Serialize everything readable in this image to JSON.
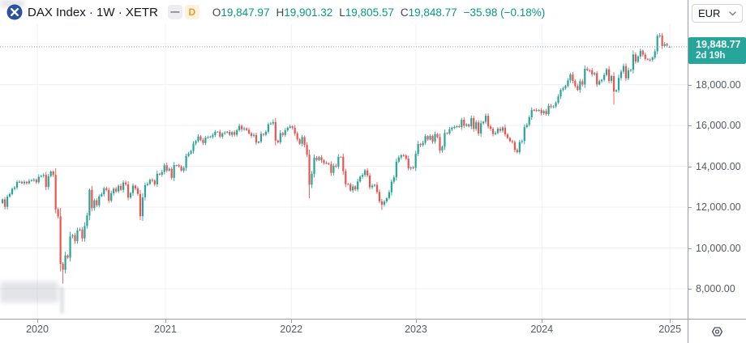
{
  "header": {
    "symbol_title": "DAX Index · 1W · XETR",
    "toolbar": {
      "collapse_icon": "—",
      "interval_badge": "D"
    },
    "ohlc": {
      "o_label": "O",
      "o": "19,847.97",
      "h_label": "H",
      "h": "19,901.32",
      "l_label": "L",
      "l": "19,805.57",
      "c_label": "C",
      "c": "19,848.77",
      "change": "−35.98 (−0.18%)"
    }
  },
  "currency_selector": {
    "value": "EUR"
  },
  "price_scale": {
    "last_price": "19,848.77",
    "countdown": "2d 19h",
    "labels": [
      {
        "price": 20000,
        "text": "20,000.00"
      },
      {
        "price": 18000,
        "text": "18,000.00"
      },
      {
        "price": 16000,
        "text": "16,000.00"
      },
      {
        "price": 14000,
        "text": "14,000.00"
      },
      {
        "price": 12000,
        "text": "12,000.00"
      },
      {
        "price": 10000,
        "text": "10,000.00"
      },
      {
        "price": 8000,
        "text": "8,000.00"
      }
    ]
  },
  "time_scale": {
    "years": [
      "2020",
      "2021",
      "2022",
      "2023",
      "2024",
      "2025"
    ]
  },
  "colors": {
    "up": "#26a69a",
    "down": "#ef5350",
    "value_text": "#089981",
    "grid": "#eef1f6",
    "axis_text": "#555a64",
    "price_box": "#26a69a",
    "current_price_line": "#9aa0a8",
    "logo_blue": "#2a52a2",
    "badge_orange": "#f09a26"
  },
  "chart_data": {
    "type": "candlestick",
    "symbol": "DAX Index",
    "interval": "1W",
    "exchange": "XETR",
    "currency": "EUR",
    "last_bar": {
      "open": 19847.97,
      "high": 19901.32,
      "low": 19805.57,
      "close": 19848.77,
      "change": -35.98,
      "change_pct": -0.18,
      "countdown": "2d 19h"
    },
    "y_axis": {
      "ticks": [
        8000,
        10000,
        12000,
        14000,
        16000,
        18000,
        20000
      ],
      "visible_range": [
        6600,
        20950
      ],
      "grid": true
    },
    "x_axis": {
      "years": [
        2020,
        2021,
        2022,
        2023,
        2024,
        2025
      ],
      "tick_weeks": [
        14.4,
        67.4,
        119.5,
        171.1,
        223.2,
        276.2
      ],
      "start": "2019-09",
      "end": "2025-01"
    },
    "first_open": 12200,
    "weekly_closes": [
      12380,
      12012,
      12512,
      12634,
      12895,
      12961,
      13229,
      13242,
      13164,
      13236,
      13167,
      13283,
      13319,
      13337,
      13219,
      13483,
      13526,
      13577,
      12982,
      13514,
      13744,
      13579,
      11890,
      11542,
      9232,
      8929,
      9633,
      9526,
      10565,
      10626,
      10336,
      10862,
      10904,
      10465,
      11074,
      11587,
      12847,
      11950,
      12331,
      12089,
      12528,
      12634,
      12920,
      12838,
      12313,
      12675,
      12901,
      12765,
      13033,
      12843,
      13203,
      13116,
      12469,
      12689,
      13052,
      12909,
      12646,
      11556,
      12480,
      13077,
      13137,
      13336,
      13299,
      13114,
      13631,
      13587,
      13719,
      14050,
      13788,
      13874,
      13433,
      14057,
      14050,
      13993,
      13786,
      13921,
      14502,
      14621,
      14749,
      15107,
      15234,
      15460,
      15280,
      15136,
      15400,
      15416,
      15438,
      15520,
      15693,
      15693,
      15448,
      15608,
      15650,
      15687,
      15540,
      15669,
      15544,
      15761,
      15977,
      15808,
      15852,
      15781,
      15610,
      15490,
      15532,
      15156,
      15206,
      15587,
      15543,
      15689,
      16054,
      16094,
      16160,
      15257,
      15170,
      15623,
      15532,
      15754,
      15885,
      15948,
      15883,
      15604,
      15319,
      15100,
      15425,
      15043,
      14567,
      13095,
      13628,
      14413,
      14306,
      14446,
      14284,
      14163,
      14142,
      14098,
      13674,
      14028,
      13982,
      14462,
      14460,
      13762,
      13126,
      13118,
      12813,
      13015,
      12864,
      13254,
      13484,
      13574,
      13796,
      13544,
      12971,
      13050,
      13088,
      12741,
      12284,
      12114,
      12273,
      12438,
      12731,
      13243,
      13460,
      14224,
      14432,
      14541,
      14529,
      14371,
      13894,
      13941,
      13924,
      14610,
      15087,
      15034,
      15150,
      15476,
      15308,
      15482,
      15210,
      15578,
      15428,
      14768,
      14957,
      15629,
      15598,
      15808,
      15882,
      15922,
      15961,
      15914,
      16275,
      15984,
      16051,
      15950,
      16358,
      15830,
      16148,
      15603,
      16105,
      16177,
      16470,
      15952,
      15832,
      15574,
      15632,
      15840,
      15740,
      15894,
      15557,
      15387,
      15230,
      15187,
      14798,
      14687,
      15189,
      15234,
      15919,
      16029,
      16398,
      16759,
      16751,
      16706,
      16752,
      16594,
      16704,
      16555,
      16961,
      16918,
      16926,
      17117,
      17419,
      17735,
      17815,
      17937,
      18205,
      18492,
      18175,
      17930,
      17737,
      18161,
      18001,
      18773,
      18704,
      18694,
      18498,
      18557,
      18002,
      18164,
      18235,
      18475,
      18748,
      18172,
      18417,
      17661,
      17722,
      18322,
      18633,
      18907,
      18302,
      18699,
      18720,
      19474,
      19121,
      19374,
      19657,
      19463,
      19255,
      19216,
      19211,
      19323,
      19626,
      20384,
      20406,
      19885,
      19984,
      19906,
      19848.77
    ],
    "low_overrides": {
      "22": 11693,
      "25": 8255,
      "113": 15015,
      "127": 12439,
      "157": 11863,
      "181": 14630,
      "213": 14625,
      "253": 17024
    },
    "high_overrides": {
      "20": 13795,
      "36": 12913,
      "112": 16290,
      "271": 20461,
      "272": 20522
    },
    "up_color": "#26a69a",
    "down_color": "#ef5350"
  }
}
